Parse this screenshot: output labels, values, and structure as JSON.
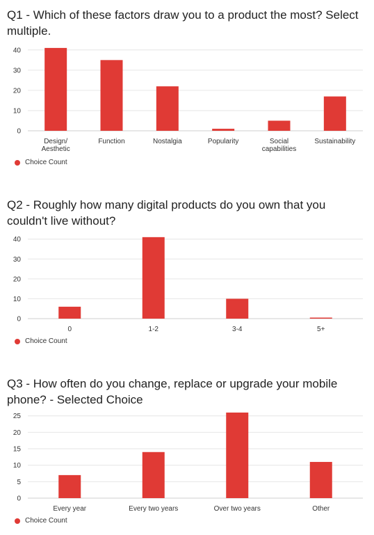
{
  "accent_color": "#e03a35",
  "chart_data": [
    {
      "type": "bar",
      "title": "Q1 - Which of these factors draw you to a product the most? Select multiple.",
      "categories": [
        [
          "Design/",
          "Aesthetic"
        ],
        [
          "Function"
        ],
        [
          "Nostalgia"
        ],
        [
          "Popularity"
        ],
        [
          "Social",
          "capabilities"
        ],
        [
          "Sustainability"
        ]
      ],
      "series": [
        {
          "name": "Choice Count",
          "values": [
            41,
            35,
            22,
            1,
            5,
            17
          ]
        }
      ],
      "yticks": [
        0,
        10,
        20,
        30,
        40
      ],
      "ylim": [
        0,
        42
      ],
      "grid": true,
      "legend": "bottom-left"
    },
    {
      "type": "bar",
      "title": "Q2 - Roughly how many digital products do you own that you couldn't live without?",
      "categories": [
        [
          "0"
        ],
        [
          "1-2"
        ],
        [
          "3-4"
        ],
        [
          "5+"
        ]
      ],
      "series": [
        {
          "name": "Choice Count",
          "values": [
            6,
            41,
            10,
            0.5
          ]
        }
      ],
      "yticks": [
        0,
        10,
        20,
        30,
        40
      ],
      "ylim": [
        0,
        42
      ],
      "grid": true,
      "legend": "bottom-left"
    },
    {
      "type": "bar",
      "title": "Q3 - How often do you change, replace or upgrade your mobile phone? - Selected Choice",
      "categories": [
        [
          "Every year"
        ],
        [
          "Every two years"
        ],
        [
          "Over two years"
        ],
        [
          "Other"
        ]
      ],
      "series": [
        {
          "name": "Choice Count",
          "values": [
            7,
            14,
            26,
            11
          ]
        }
      ],
      "yticks": [
        0,
        5,
        10,
        15,
        20,
        25
      ],
      "ylim": [
        0,
        26
      ],
      "grid": true,
      "legend": "bottom-left"
    }
  ]
}
